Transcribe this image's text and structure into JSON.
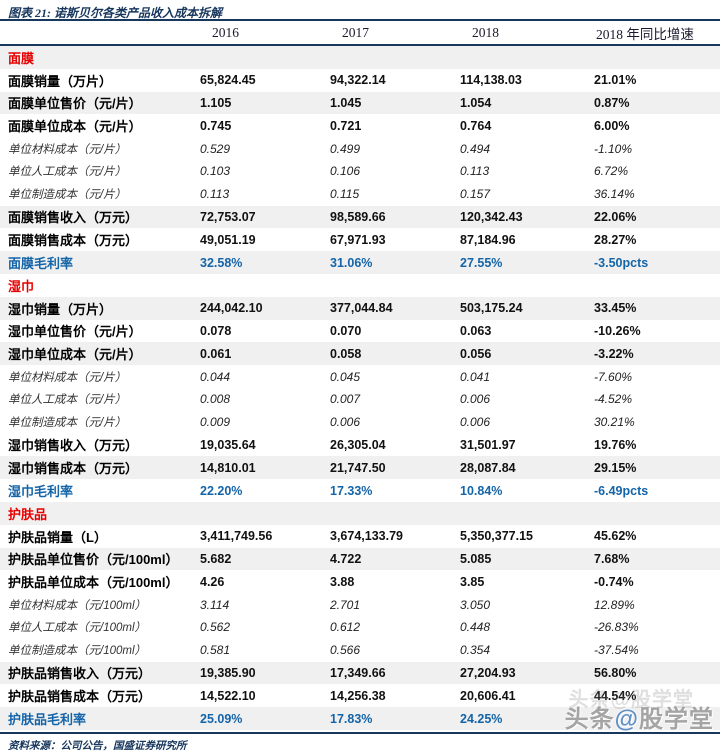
{
  "page": {
    "title": "图表 21: 诺斯贝尔各类产品收入成本拆解",
    "source": "资料来源：公司公告，国盛证券研究所",
    "watermark": {
      "prefix": "头条",
      "at": "@",
      "suffix": "股学堂",
      "full": "头条@股学堂"
    }
  },
  "colors": {
    "navy": "#17375D",
    "section_red": "#e60000",
    "rate_blue": "#1464A8",
    "row_shade": "#f0f0f0"
  },
  "table": {
    "columns": [
      "2016",
      "2017",
      "2018",
      "2018 年同比增速"
    ],
    "sections": [
      {
        "name": "面膜",
        "header_shaded": true,
        "rows": [
          {
            "label": "面膜销量（万片）",
            "values": [
              "65,824.45",
              "94,322.14",
              "114,138.03",
              "21.01%"
            ],
            "style": "data",
            "shaded": false
          },
          {
            "label": "面膜单位售价（元/片）",
            "values": [
              "1.105",
              "1.045",
              "1.054",
              "0.87%"
            ],
            "style": "data",
            "shaded": true
          },
          {
            "label": "面膜单位成本（元/片）",
            "values": [
              "0.745",
              "0.721",
              "0.764",
              "6.00%"
            ],
            "style": "data",
            "shaded": false
          },
          {
            "label": "单位材料成本（元/片）",
            "values": [
              "0.529",
              "0.499",
              "0.494",
              "-1.10%"
            ],
            "style": "sub",
            "shaded": false
          },
          {
            "label": "单位人工成本（元/片）",
            "values": [
              "0.103",
              "0.106",
              "0.113",
              "6.72%"
            ],
            "style": "sub",
            "shaded": false
          },
          {
            "label": "单位制造成本（元/片）",
            "values": [
              "0.113",
              "0.115",
              "0.157",
              "36.14%"
            ],
            "style": "sub",
            "shaded": false
          },
          {
            "label": "面膜销售收入（万元）",
            "values": [
              "72,753.07",
              "98,589.66",
              "120,342.43",
              "22.06%"
            ],
            "style": "data",
            "shaded": true
          },
          {
            "label": "面膜销售成本（万元）",
            "values": [
              "49,051.19",
              "67,971.93",
              "87,184.96",
              "28.27%"
            ],
            "style": "data",
            "shaded": false
          },
          {
            "label": "面膜毛利率",
            "values": [
              "32.58%",
              "31.06%",
              "27.55%",
              "-3.50pcts"
            ],
            "style": "rate",
            "shaded": true
          }
        ]
      },
      {
        "name": "湿巾",
        "header_shaded": false,
        "rows": [
          {
            "label": "湿巾销量（万片）",
            "values": [
              "244,042.10",
              "377,044.84",
              "503,175.24",
              "33.45%"
            ],
            "style": "data",
            "shaded": true
          },
          {
            "label": "湿巾单位售价（元/片）",
            "values": [
              "0.078",
              "0.070",
              "0.063",
              "-10.26%"
            ],
            "style": "data",
            "shaded": false
          },
          {
            "label": "湿巾单位成本（元/片）",
            "values": [
              "0.061",
              "0.058",
              "0.056",
              "-3.22%"
            ],
            "style": "data",
            "shaded": true
          },
          {
            "label": "单位材料成本（元/片）",
            "values": [
              "0.044",
              "0.045",
              "0.041",
              "-7.60%"
            ],
            "style": "sub",
            "shaded": false
          },
          {
            "label": "单位人工成本（元/片）",
            "values": [
              "0.008",
              "0.007",
              "0.006",
              "-4.52%"
            ],
            "style": "sub",
            "shaded": false
          },
          {
            "label": "单位制造成本（元/片）",
            "values": [
              "0.009",
              "0.006",
              "0.006",
              "30.21%"
            ],
            "style": "sub",
            "shaded": false
          },
          {
            "label": "湿巾销售收入（万元）",
            "values": [
              "19,035.64",
              "26,305.04",
              "31,501.97",
              "19.76%"
            ],
            "style": "data",
            "shaded": false
          },
          {
            "label": "湿巾销售成本（万元）",
            "values": [
              "14,810.01",
              "21,747.50",
              "28,087.84",
              "29.15%"
            ],
            "style": "data",
            "shaded": true
          },
          {
            "label": "湿巾毛利率",
            "values": [
              "22.20%",
              "17.33%",
              "10.84%",
              "-6.49pcts"
            ],
            "style": "rate",
            "shaded": false
          }
        ]
      },
      {
        "name": "护肤品",
        "header_shaded": true,
        "rows": [
          {
            "label": "护肤品销量（L）",
            "values": [
              "3,411,749.56",
              "3,674,133.79",
              "5,350,377.15",
              "45.62%"
            ],
            "style": "data",
            "shaded": false
          },
          {
            "label": "护肤品单位售价（元/100ml）",
            "values": [
              "5.682",
              "4.722",
              "5.085",
              "7.68%"
            ],
            "style": "data",
            "shaded": true
          },
          {
            "label": "护肤品单位成本（元/100ml）",
            "values": [
              "4.26",
              "3.88",
              "3.85",
              "-0.74%"
            ],
            "style": "data",
            "shaded": false
          },
          {
            "label": "单位材料成本（元/100ml）",
            "values": [
              "3.114",
              "2.701",
              "3.050",
              "12.89%"
            ],
            "style": "sub",
            "shaded": false
          },
          {
            "label": "单位人工成本（元/100ml）",
            "values": [
              "0.562",
              "0.612",
              "0.448",
              "-26.83%"
            ],
            "style": "sub",
            "shaded": false
          },
          {
            "label": "单位制造成本（元/100ml）",
            "values": [
              "0.581",
              "0.566",
              "0.354",
              "-37.54%"
            ],
            "style": "sub",
            "shaded": false
          },
          {
            "label": "护肤品销售收入（万元）",
            "values": [
              "19,385.90",
              "17,349.66",
              "27,204.93",
              "56.80%"
            ],
            "style": "data",
            "shaded": true
          },
          {
            "label": "护肤品销售成本（万元）",
            "values": [
              "14,522.10",
              "14,256.38",
              "20,606.41",
              "44.54%"
            ],
            "style": "data",
            "shaded": false
          },
          {
            "label": "护肤品毛利率",
            "values": [
              "25.09%",
              "17.83%",
              "24.25%",
              ""
            ],
            "style": "rate",
            "shaded": true
          }
        ]
      }
    ]
  }
}
